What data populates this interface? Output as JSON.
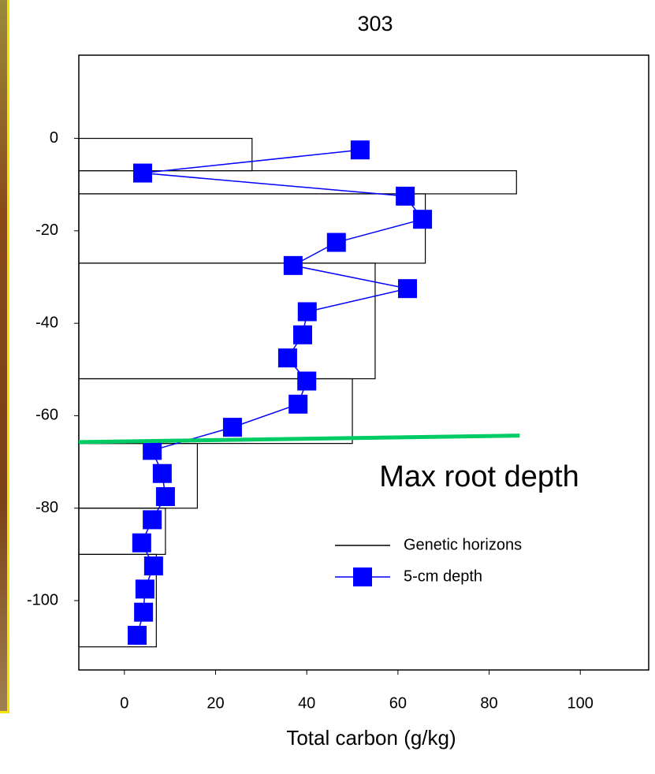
{
  "chart_data": {
    "type": "scatter",
    "title": "303",
    "x_label": "Total carbon (g/kg)",
    "xlim": [
      -10,
      115
    ],
    "xticks": [
      0,
      20,
      40,
      60,
      80,
      100
    ],
    "ylim": [
      -115,
      18
    ],
    "yticks": [
      0,
      -20,
      -40,
      -60,
      -80,
      -100
    ],
    "horizons": {
      "name": "Genetic horizons",
      "color": "#000000",
      "top": [
        0,
        -7,
        -12,
        -27,
        -52,
        -66,
        -80,
        -90
      ],
      "bottom": [
        -7,
        -12,
        -27,
        -52,
        -66,
        -80,
        -90,
        -110
      ],
      "values": [
        28,
        86,
        66,
        55,
        50,
        16,
        9,
        7
      ]
    },
    "series": [
      {
        "name": "5-cm depth",
        "color": "#0000ff",
        "x": [
          51.7,
          4,
          61.6,
          65.4,
          46.5,
          37,
          62.1,
          40.1,
          39.1,
          35.8,
          40,
          38.1,
          23.7,
          6.1,
          8.3,
          9,
          6.1,
          3.8,
          6.4,
          4.5,
          4.2,
          2.8
        ],
        "values": [
          -2.5,
          -7.5,
          -12.5,
          -17.5,
          -22.5,
          -27.5,
          -32.5,
          -37.5,
          -42.5,
          -47.5,
          -52.5,
          -57.5,
          -62.5,
          -67.5,
          -72.5,
          -77.5,
          -82.5,
          -87.5,
          -92.5,
          -97.5,
          -102.5,
          -107.5
        ]
      }
    ],
    "root_line": {
      "label": "Max root depth",
      "color": "#00cc66",
      "x": [
        -10,
        86.7
      ],
      "y": [
        -65.7,
        -64.3
      ]
    }
  }
}
